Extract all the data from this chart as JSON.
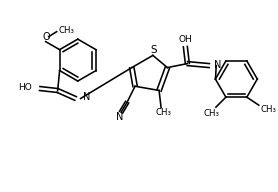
{
  "bg": "#ffffff",
  "lw": 1.15,
  "figsize": [
    2.78,
    1.92
  ],
  "dpi": 100,
  "xlim": [
    0,
    278
  ],
  "ylim": [
    0,
    192
  ]
}
